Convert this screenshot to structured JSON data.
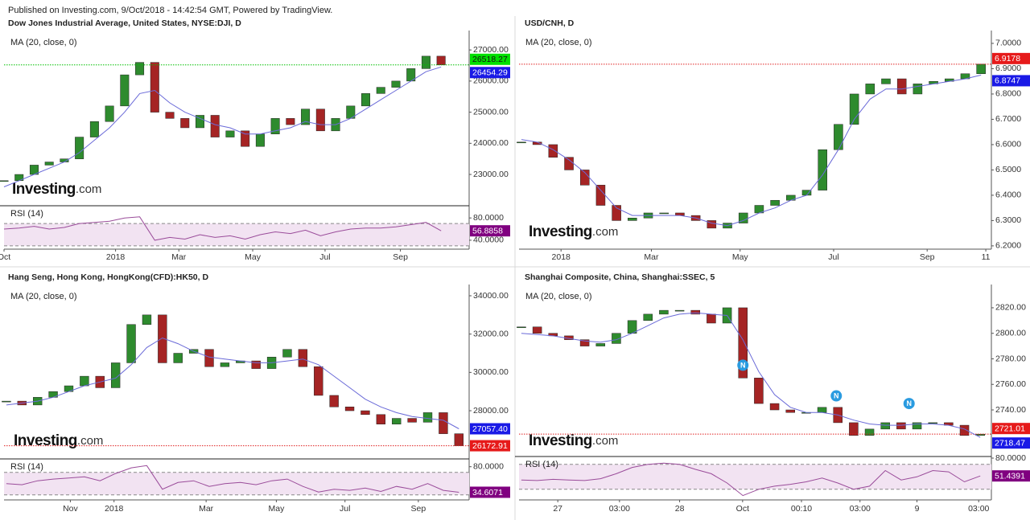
{
  "header": {
    "text": "Published on Investing.com, 9/Oct/2018 - 14:42:54 GMT, Powered by TradingView."
  },
  "logo": {
    "main": "Investing",
    "suffix": ".com"
  },
  "chart_data": [
    {
      "type": "candlestick",
      "title": "Dow Jones Industrial Average, United States, NYSE:DJI, D",
      "indicator": "MA (20, close, 0)",
      "up_color": "#2e8b2e",
      "down_color": "#a52424",
      "ma_color": "#6a6ad8",
      "rsi_color": "#9a4c9a",
      "close_label_color": "#00e000",
      "close_label_text_color": "#111111",
      "ma_label_color": "#1a1ae6",
      "rsi_label_color": "#800080",
      "last_line_color": "#00c000",
      "xlim": [
        0,
        30.7
      ],
      "xticks": [
        {
          "value": 0,
          "label": "Oct"
        },
        {
          "value": 7.4,
          "label": "2018"
        },
        {
          "value": 11.6,
          "label": "Mar"
        },
        {
          "value": 16.5,
          "label": "May"
        },
        {
          "value": 21.3,
          "label": "Jul"
        },
        {
          "value": 26.3,
          "label": "Sep"
        }
      ],
      "ylim": [
        22020,
        27520
      ],
      "yticks": [
        {
          "value": 23000,
          "label": "23000.00"
        },
        {
          "value": 24000,
          "label": "24000.00"
        },
        {
          "value": 25000,
          "label": "25000.00"
        },
        {
          "value": 26000,
          "label": "26000.00"
        },
        {
          "value": 27000,
          "label": "27000.00"
        }
      ],
      "close_values": [
        22800,
        23000,
        23300,
        23400,
        23500,
        24200,
        24700,
        25200,
        26200,
        26600,
        25000,
        24800,
        24500,
        24900,
        24200,
        24400,
        23900,
        24300,
        24800,
        24600,
        25100,
        24400,
        24800,
        25200,
        25600,
        25800,
        26000,
        26400,
        26800,
        26518.27
      ],
      "close_label": "26518.27",
      "ma_values": [
        22600,
        22800,
        23000,
        23200,
        23400,
        23700,
        24100,
        24500,
        25000,
        25600,
        25700,
        25300,
        25000,
        24800,
        24600,
        24500,
        24300,
        24300,
        24400,
        24500,
        24700,
        24600,
        24600,
        24800,
        25100,
        25400,
        25700,
        26000,
        26300,
        26454.29
      ],
      "ma_label": "26454.29",
      "rsi_title": "RSI (14)",
      "rsi_ylim": [
        24,
        99
      ],
      "rsi_yticks": [
        {
          "value": 80,
          "label": "80.0000"
        },
        {
          "value": 40,
          "label": "40.0000"
        }
      ],
      "rsi_band": [
        30,
        70
      ],
      "rsi_values": [
        60,
        62,
        65,
        60,
        63,
        70,
        72,
        74,
        80,
        82,
        40,
        45,
        42,
        50,
        45,
        48,
        42,
        50,
        55,
        52,
        58,
        48,
        55,
        60,
        62,
        62,
        64,
        68,
        72,
        56.8858
      ],
      "rsi_label": "56.8858"
    },
    {
      "type": "candlestick",
      "title": "USD/CNH, D",
      "indicator": "MA (20, close, 0)",
      "up_color": "#2e8b2e",
      "down_color": "#a52424",
      "ma_color": "#6a6ad8",
      "close_label_color": "#e61a1a",
      "close_label_text_color": "#ffffff",
      "ma_label_color": "#1a1ae6",
      "last_line_color": "#e02020",
      "xlim": [
        -0.15,
        29.55
      ],
      "xticks": [
        {
          "value": 2.5,
          "label": "2018"
        },
        {
          "value": 8.2,
          "label": "Mar"
        },
        {
          "value": 13.8,
          "label": "May"
        },
        {
          "value": 19.7,
          "label": "Jul"
        },
        {
          "value": 25.6,
          "label": "Sep"
        },
        {
          "value": 29.3,
          "label": "11"
        }
      ],
      "ylim": [
        6.187,
        7.038
      ],
      "yticks": [
        {
          "value": 6.2,
          "label": "6.2000"
        },
        {
          "value": 6.3,
          "label": "6.3000"
        },
        {
          "value": 6.4,
          "label": "6.4000"
        },
        {
          "value": 6.5,
          "label": "6.5000"
        },
        {
          "value": 6.6,
          "label": "6.6000"
        },
        {
          "value": 6.7,
          "label": "6.7000"
        },
        {
          "value": 6.8,
          "label": "6.8000"
        },
        {
          "value": 6.9,
          "label": "6.9000"
        },
        {
          "value": 7.0,
          "label": "7.0000"
        }
      ],
      "close_values": [
        6.61,
        6.6,
        6.55,
        6.5,
        6.44,
        6.36,
        6.3,
        6.31,
        6.33,
        6.33,
        6.32,
        6.3,
        6.27,
        6.29,
        6.33,
        6.36,
        6.38,
        6.4,
        6.42,
        6.58,
        6.68,
        6.8,
        6.84,
        6.86,
        6.8,
        6.84,
        6.85,
        6.86,
        6.88,
        6.9178
      ],
      "close_label": "6.9178",
      "ma_values": [
        6.62,
        6.61,
        6.58,
        6.54,
        6.49,
        6.42,
        6.35,
        6.32,
        6.32,
        6.32,
        6.32,
        6.31,
        6.29,
        6.28,
        6.3,
        6.33,
        6.35,
        6.38,
        6.4,
        6.48,
        6.58,
        6.7,
        6.78,
        6.82,
        6.82,
        6.83,
        6.84,
        6.85,
        6.86,
        6.8747
      ],
      "ma_label": "6.8747"
    },
    {
      "type": "candlestick",
      "title": "Hang Seng, Hong Kong, HongKong(CFD):HK50, D",
      "indicator": "MA (20, close, 0)",
      "up_color": "#2e8b2e",
      "down_color": "#a52424",
      "ma_color": "#6a6ad8",
      "rsi_color": "#9a4c9a",
      "close_label_color": "#e61a1a",
      "close_label_text_color": "#ffffff",
      "ma_label_color": "#1a1ae6",
      "rsi_label_color": "#800080",
      "last_line_color": "#e02020",
      "xlim": [
        -0.15,
        29.5
      ],
      "xticks": [
        {
          "value": 4.1,
          "label": "Nov"
        },
        {
          "value": 6.9,
          "label": "2018"
        },
        {
          "value": 12.8,
          "label": "Mar"
        },
        {
          "value": 17.3,
          "label": "May"
        },
        {
          "value": 21.7,
          "label": "Jul"
        },
        {
          "value": 26.4,
          "label": "Sep"
        }
      ],
      "ylim": [
        25610,
        34420
      ],
      "yticks": [
        {
          "value": 28000,
          "label": "28000.00"
        },
        {
          "value": 30000,
          "label": "30000.00"
        },
        {
          "value": 32000,
          "label": "32000.00"
        },
        {
          "value": 34000,
          "label": "34000.00"
        }
      ],
      "close_values": [
        28500,
        28300,
        28700,
        29000,
        29300,
        29800,
        29200,
        30500,
        32500,
        33000,
        30500,
        31000,
        31200,
        30300,
        30500,
        30600,
        30200,
        30800,
        31200,
        30300,
        28800,
        28200,
        28000,
        27800,
        27300,
        27600,
        27400,
        27900,
        26800,
        26172.91
      ],
      "close_label": "26172.91",
      "ma_values": [
        28300,
        28400,
        28500,
        28700,
        29000,
        29300,
        29500,
        29700,
        30400,
        31300,
        31800,
        31500,
        31100,
        30800,
        30700,
        30600,
        30500,
        30500,
        30600,
        30700,
        30400,
        29800,
        29200,
        28600,
        28200,
        27900,
        27700,
        27600,
        27500,
        27057.4
      ],
      "ma_label": "27057.40",
      "rsi_title": "RSI (14)",
      "rsi_ylim": [
        21,
        91
      ],
      "rsi_yticks": [
        {
          "value": 80,
          "label": "80.0000"
        }
      ],
      "rsi_band": [
        30,
        70
      ],
      "rsi_values": [
        50,
        48,
        55,
        58,
        60,
        62,
        55,
        68,
        78,
        82,
        40,
        52,
        55,
        45,
        50,
        52,
        48,
        55,
        58,
        45,
        35,
        40,
        38,
        42,
        36,
        45,
        40,
        50,
        38,
        34.6071
      ],
      "rsi_label": "34.6071"
    },
    {
      "type": "candlestick",
      "title": "Shanghai Composite, China, Shanghai:SSEC, 5",
      "indicator": "MA (20, close, 0)",
      "up_color": "#2e8b2e",
      "down_color": "#a52424",
      "ma_color": "#6a6ad8",
      "rsi_color": "#9a4c9a",
      "close_label_color": "#e61a1a",
      "close_label_text_color": "#ffffff",
      "ma_label_color": "#1a1ae6",
      "rsi_label_color": "#800080",
      "last_line_color": "#e02020",
      "xlim": [
        -0.15,
        29.6
      ],
      "xticks": [
        {
          "value": 2.3,
          "label": "27"
        },
        {
          "value": 6.2,
          "label": "03:00"
        },
        {
          "value": 10.0,
          "label": "28"
        },
        {
          "value": 13.98,
          "label": "Oct"
        },
        {
          "value": 17.7,
          "label": "00:10"
        },
        {
          "value": 21.4,
          "label": "03:00"
        },
        {
          "value": 25.0,
          "label": "9"
        },
        {
          "value": 28.9,
          "label": "03:00"
        }
      ],
      "ylim": [
        2703.5,
        2835.7
      ],
      "yticks": [
        {
          "value": 2740,
          "label": "2740.00"
        },
        {
          "value": 2760,
          "label": "2760.00"
        },
        {
          "value": 2780,
          "label": "2780.00"
        },
        {
          "value": 2800,
          "label": "2800.00"
        },
        {
          "value": 2820,
          "label": "2820.00"
        }
      ],
      "close_values": [
        2805,
        2800,
        2798,
        2795,
        2790,
        2792,
        2800,
        2810,
        2815,
        2818,
        2818,
        2815,
        2808,
        2820,
        2765,
        2745,
        2740,
        2738,
        2738,
        2742,
        2730,
        2720,
        2725,
        2730,
        2725,
        2730,
        2730,
        2728,
        2720,
        2721.01
      ],
      "close_label": "2721.01",
      "ma_values": [
        2800,
        2799,
        2798,
        2796,
        2794,
        2793,
        2795,
        2800,
        2806,
        2812,
        2815,
        2816,
        2815,
        2814,
        2795,
        2770,
        2752,
        2742,
        2738,
        2738,
        2736,
        2732,
        2729,
        2728,
        2728,
        2729,
        2729,
        2728,
        2725,
        2718.47
      ],
      "ma_label": "2718.47",
      "news_markers": [
        {
          "label": "N",
          "x": 14.0,
          "y": 2775
        },
        {
          "label": "N",
          "x": 19.9,
          "y": 2751
        },
        {
          "label": "N",
          "x": 24.5,
          "y": 2745
        }
      ],
      "rsi_title": "RSI (14)",
      "rsi_ylim": [
        13,
        80
      ],
      "rsi_yticks": [
        {
          "value": 80,
          "label": "80.0000"
        }
      ],
      "rsi_band": [
        30,
        70
      ],
      "rsi_values": [
        45,
        44,
        46,
        45,
        44,
        47,
        55,
        65,
        70,
        72,
        70,
        62,
        55,
        40,
        20,
        30,
        35,
        38,
        42,
        48,
        40,
        30,
        35,
        60,
        45,
        50,
        60,
        58,
        42,
        51.4391
      ],
      "rsi_label": "51.4391"
    }
  ]
}
